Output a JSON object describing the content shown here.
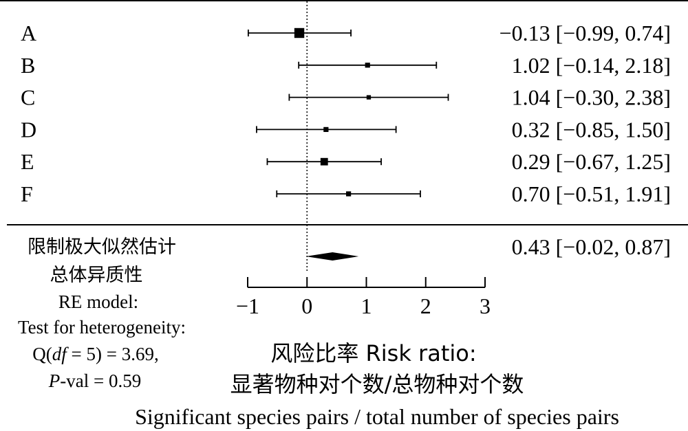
{
  "chart_data": {
    "type": "forest",
    "title": "",
    "rows": [
      {
        "label": "A",
        "estimate": -0.13,
        "lower": -0.99,
        "upper": 0.74,
        "ci_text": "−0.13 [−0.99, 0.74]",
        "weight": 1.6
      },
      {
        "label": "B",
        "estimate": 1.02,
        "lower": -0.14,
        "upper": 2.18,
        "ci_text": "1.02 [−0.14, 2.18]",
        "weight": 0.8
      },
      {
        "label": "C",
        "estimate": 1.04,
        "lower": -0.3,
        "upper": 2.38,
        "ci_text": "1.04 [−0.30, 2.38]",
        "weight": 0.7
      },
      {
        "label": "D",
        "estimate": 0.32,
        "lower": -0.85,
        "upper": 1.5,
        "ci_text": "0.32 [−0.85, 1.50]",
        "weight": 0.8
      },
      {
        "label": "E",
        "estimate": 0.29,
        "lower": -0.67,
        "upper": 1.25,
        "ci_text": "0.29 [−0.67, 1.25]",
        "weight": 1.2
      },
      {
        "label": "F",
        "estimate": 0.7,
        "lower": -0.51,
        "upper": 1.91,
        "ci_text": "0.70 [−0.51, 1.91]",
        "weight": 0.8
      }
    ],
    "summary": {
      "estimate": 0.43,
      "lower": -0.02,
      "upper": 0.87,
      "ci_text": "0.43 [−0.02, 0.87]"
    },
    "xlim": [
      -1,
      3
    ],
    "xticks": [
      -1,
      0,
      1,
      2,
      3
    ],
    "xtick_labels": [
      "−1",
      "0",
      "1",
      "2",
      "3"
    ],
    "reference_line": 0,
    "model_label_cn_1": "限制极大似然估计",
    "model_label_cn_2": "总体异质性",
    "model_label_en": "RE model:",
    "het_label": "Test for heterogeneity:",
    "het_q_prefix": "Q(",
    "het_q_df": "df",
    "het_q_suffix": " = 5) = 3.69,",
    "het_p_prefix": "P",
    "het_p_suffix": "-val = 0.59",
    "xlabel_line1": "风险比率 Risk ratio:",
    "xlabel_line2": "显著物种对个数/总物种对个数",
    "xlabel_line3": "Significant species pairs / total number of species pairs"
  }
}
